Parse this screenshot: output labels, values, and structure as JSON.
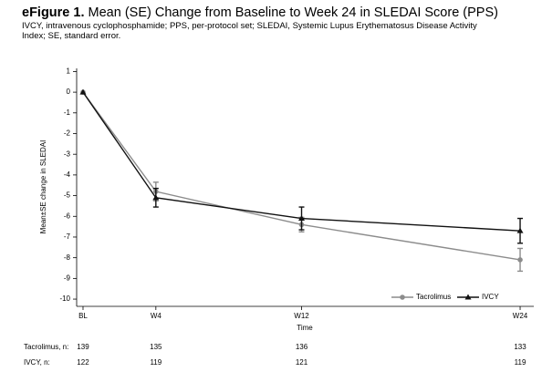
{
  "chart_data": {
    "type": "line",
    "title_label": "eFigure 1.",
    "title": "Mean (SE) Change from Baseline to Week 24 in SLEDAI Score (PPS)",
    "subtitle": "IVCY, intravenous cyclophosphamide; PPS, per-protocol set; SLEDAI, Systemic Lupus Erythematosus Disease Activity Index; SE, standard error.",
    "x_label": "Time",
    "y_label": "Mean±SE change in SLEDAI",
    "x": [
      0,
      4,
      12,
      24
    ],
    "xlim": [
      -0.35,
      24.75
    ],
    "xticks": [
      {
        "value": 0,
        "label": "BL"
      },
      {
        "value": 4,
        "label": "W4"
      },
      {
        "value": 12,
        "label": "W12"
      },
      {
        "value": 24,
        "label": "W24"
      }
    ],
    "ylim": [
      -10.35,
      1.15
    ],
    "yticks": [
      1,
      0,
      -1,
      -2,
      -3,
      -4,
      -5,
      -6,
      -7,
      -8,
      -9,
      -10
    ],
    "legend": "lower right",
    "series": [
      {
        "name": "Tacrolimus",
        "color": "#8c8c8c",
        "marker": "circle",
        "values": [
          0,
          -4.8,
          -6.4,
          -8.1
        ],
        "errors": [
          null,
          0.45,
          0.35,
          0.55
        ]
      },
      {
        "name": "IVCY",
        "color": "#111111",
        "marker": "triangle",
        "values": [
          0,
          -5.1,
          -6.1,
          -6.7
        ],
        "errors": [
          null,
          0.45,
          0.55,
          0.6
        ]
      }
    ],
    "n_table": [
      {
        "label": "Tacrolimus, n:",
        "values": [
          139,
          135,
          136,
          133
        ]
      },
      {
        "label": "IVCY, n:",
        "values": [
          122,
          119,
          121,
          119
        ]
      }
    ]
  }
}
